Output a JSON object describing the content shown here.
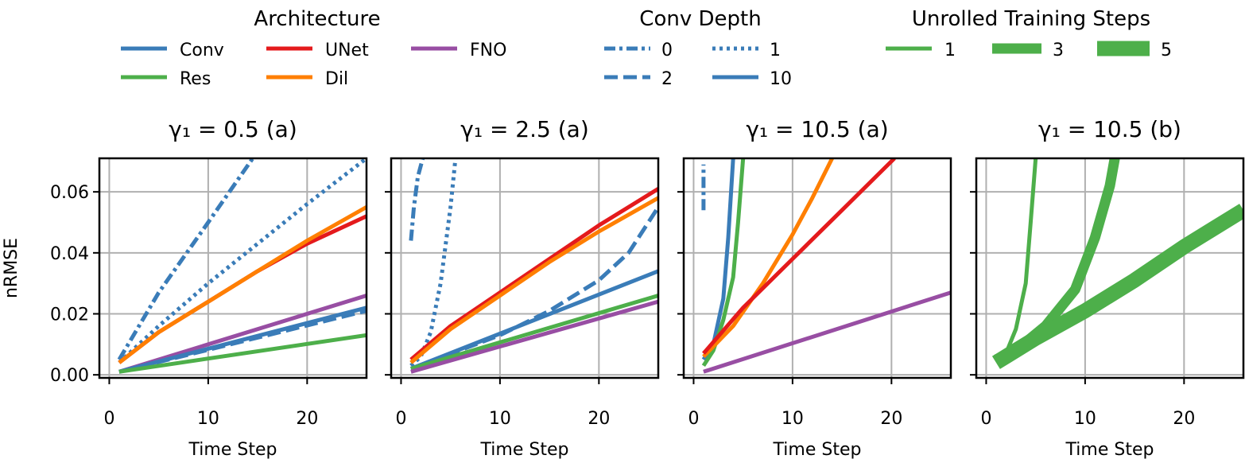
{
  "legend": {
    "architecture": {
      "title": "Architecture",
      "items": [
        {
          "label": "Conv",
          "color": "#3a7cb8"
        },
        {
          "label": "UNet",
          "color": "#e41a1c"
        },
        {
          "label": "FNO",
          "color": "#984ea3"
        },
        {
          "label": "Res",
          "color": "#4daf4a"
        },
        {
          "label": "Dil",
          "color": "#ff7f00"
        }
      ]
    },
    "conv_depth": {
      "title": "Conv Depth",
      "items": [
        {
          "label": "0",
          "style": "dash-dot"
        },
        {
          "label": "1",
          "style": "dotted"
        },
        {
          "label": "2",
          "style": "dashed"
        },
        {
          "label": "10",
          "style": "solid"
        }
      ]
    },
    "unrolled": {
      "title": "Unrolled Training Steps",
      "items": [
        {
          "label": "1",
          "width": "thin"
        },
        {
          "label": "3",
          "width": "medium"
        },
        {
          "label": "5",
          "width": "thick"
        }
      ]
    }
  },
  "chart_data": [
    {
      "type": "line",
      "title": "γ₁ = 0.5 (a)",
      "xlabel": "Time Step",
      "ylabel": "nRMSE",
      "xlim": [
        -1,
        26
      ],
      "ylim": [
        -0.001,
        0.071
      ],
      "xticks": [
        "0",
        "10",
        "20"
      ],
      "yticks": [
        "0.00",
        "0.02",
        "0.04",
        "0.06"
      ],
      "grid": true,
      "series": [
        {
          "arch": "Conv",
          "depth": "0",
          "unroll": "1",
          "color": "#3a7cb8",
          "x": [
            1,
            5,
            10,
            14.5
          ],
          "y": [
            0.005,
            0.027,
            0.05,
            0.071
          ]
        },
        {
          "arch": "Conv",
          "depth": "1",
          "unroll": "1",
          "color": "#3a7cb8",
          "x": [
            1,
            5,
            10,
            15,
            20,
            26
          ],
          "y": [
            0.004,
            0.016,
            0.03,
            0.043,
            0.056,
            0.071
          ]
        },
        {
          "arch": "UNet",
          "depth": "10",
          "unroll": "1",
          "color": "#e41a1c",
          "x": [
            1,
            5,
            10,
            15,
            20,
            26
          ],
          "y": [
            0.004,
            0.014,
            0.024,
            0.034,
            0.043,
            0.052
          ]
        },
        {
          "arch": "Dil",
          "depth": "10",
          "unroll": "1",
          "color": "#ff7f00",
          "x": [
            1,
            5,
            10,
            15,
            20,
            26
          ],
          "y": [
            0.004,
            0.014,
            0.024,
            0.034,
            0.044,
            0.055
          ]
        },
        {
          "arch": "FNO",
          "depth": "10",
          "unroll": "1",
          "color": "#984ea3",
          "x": [
            1,
            26
          ],
          "y": [
            0.001,
            0.026
          ]
        },
        {
          "arch": "Conv",
          "depth": "10",
          "unroll": "1",
          "color": "#3a7cb8",
          "x": [
            1,
            26
          ],
          "y": [
            0.001,
            0.022
          ]
        },
        {
          "arch": "Conv",
          "depth": "2",
          "unroll": "1",
          "color": "#3a7cb8",
          "x": [
            1,
            26
          ],
          "y": [
            0.001,
            0.021
          ]
        },
        {
          "arch": "Res",
          "depth": "10",
          "unroll": "1",
          "color": "#4daf4a",
          "x": [
            1,
            26
          ],
          "y": [
            0.001,
            0.013
          ]
        }
      ]
    },
    {
      "type": "line",
      "title": "γ₁ = 2.5 (a)",
      "xlabel": "Time Step",
      "ylabel": "",
      "xlim": [
        -1,
        26
      ],
      "ylim": [
        -0.001,
        0.071
      ],
      "xticks": [
        "0",
        "10",
        "20"
      ],
      "yticks": [
        "",
        "",
        "",
        ""
      ],
      "grid": true,
      "series": [
        {
          "arch": "Conv",
          "depth": "0",
          "unroll": "1",
          "color": "#3a7cb8",
          "x": [
            1,
            1.3,
            1.7,
            2.2
          ],
          "y": [
            0.044,
            0.055,
            0.065,
            0.071
          ]
        },
        {
          "arch": "Conv",
          "depth": "1",
          "unroll": "1",
          "color": "#3a7cb8",
          "x": [
            1,
            2,
            3,
            4,
            5,
            5.5
          ],
          "y": [
            0.003,
            0.006,
            0.014,
            0.03,
            0.055,
            0.071
          ]
        },
        {
          "arch": "UNet",
          "depth": "10",
          "unroll": "1",
          "color": "#e41a1c",
          "x": [
            1,
            5,
            10,
            15,
            20,
            26
          ],
          "y": [
            0.005,
            0.016,
            0.027,
            0.038,
            0.049,
            0.061
          ]
        },
        {
          "arch": "Dil",
          "depth": "10",
          "unroll": "1",
          "color": "#ff7f00",
          "x": [
            1,
            5,
            10,
            15,
            20,
            26
          ],
          "y": [
            0.004,
            0.015,
            0.026,
            0.037,
            0.047,
            0.058
          ]
        },
        {
          "arch": "Conv",
          "depth": "2",
          "unroll": "1",
          "color": "#3a7cb8",
          "x": [
            1,
            10,
            15,
            20,
            23,
            26
          ],
          "y": [
            0.002,
            0.013,
            0.021,
            0.031,
            0.04,
            0.055
          ]
        },
        {
          "arch": "Conv",
          "depth": "10",
          "unroll": "1",
          "color": "#3a7cb8",
          "x": [
            1,
            26
          ],
          "y": [
            0.002,
            0.034
          ]
        },
        {
          "arch": "Res",
          "depth": "10",
          "unroll": "1",
          "color": "#4daf4a",
          "x": [
            1,
            26
          ],
          "y": [
            0.002,
            0.026
          ]
        },
        {
          "arch": "FNO",
          "depth": "10",
          "unroll": "1",
          "color": "#984ea3",
          "x": [
            1,
            26
          ],
          "y": [
            0.001,
            0.024
          ]
        }
      ]
    },
    {
      "type": "line",
      "title": "γ₁ = 10.5 (a)",
      "xlabel": "Time Step",
      "ylabel": "",
      "xlim": [
        -1,
        26
      ],
      "ylim": [
        -0.001,
        0.071
      ],
      "xticks": [
        "0",
        "10",
        "20"
      ],
      "yticks": [
        "",
        "",
        "",
        ""
      ],
      "grid": true,
      "series": [
        {
          "arch": "Conv",
          "depth": "0",
          "unroll": "1",
          "color": "#3a7cb8",
          "x": [
            1,
            1,
            1
          ],
          "y": [
            0.054,
            0.062,
            0.069
          ]
        },
        {
          "arch": "Conv",
          "depth": "10",
          "unroll": "1",
          "color": "#3a7cb8",
          "x": [
            1,
            2,
            3,
            3.5,
            4
          ],
          "y": [
            0.005,
            0.01,
            0.025,
            0.045,
            0.071
          ]
        },
        {
          "arch": "Res",
          "depth": "10",
          "unroll": "1",
          "color": "#4daf4a",
          "x": [
            1,
            2,
            3,
            4,
            4.5,
            5
          ],
          "y": [
            0.003,
            0.008,
            0.018,
            0.032,
            0.05,
            0.071
          ]
        },
        {
          "arch": "Dil",
          "depth": "10",
          "unroll": "1",
          "color": "#ff7f00",
          "x": [
            1,
            4,
            7,
            10,
            12,
            14
          ],
          "y": [
            0.006,
            0.016,
            0.03,
            0.046,
            0.058,
            0.071
          ]
        },
        {
          "arch": "UNet",
          "depth": "10",
          "unroll": "1",
          "color": "#e41a1c",
          "x": [
            1,
            5,
            10,
            15,
            20.3
          ],
          "y": [
            0.007,
            0.022,
            0.038,
            0.054,
            0.071
          ]
        },
        {
          "arch": "FNO",
          "depth": "10",
          "unroll": "1",
          "color": "#984ea3",
          "x": [
            1,
            26
          ],
          "y": [
            0.001,
            0.027
          ]
        }
      ]
    },
    {
      "type": "line",
      "title": "γ₁ = 10.5 (b)",
      "xlabel": "Time Step",
      "ylabel": "",
      "xlim": [
        -1,
        26
      ],
      "ylim": [
        -0.001,
        0.071
      ],
      "xticks": [
        "0",
        "10",
        "20"
      ],
      "yticks": [
        "",
        "",
        "",
        ""
      ],
      "grid": true,
      "series": [
        {
          "arch": "Res",
          "depth": "10",
          "unroll": "1",
          "color": "#4daf4a",
          "x": [
            1,
            2,
            3,
            4,
            4.5,
            5
          ],
          "y": [
            0.005,
            0.007,
            0.015,
            0.03,
            0.05,
            0.071
          ]
        },
        {
          "arch": "Res",
          "depth": "10",
          "unroll": "3",
          "color": "#4daf4a",
          "x": [
            1,
            3,
            6,
            9,
            11,
            12.5,
            13
          ],
          "y": [
            0.005,
            0.008,
            0.016,
            0.028,
            0.045,
            0.062,
            0.071
          ]
        },
        {
          "arch": "Res",
          "depth": "10",
          "unroll": "5",
          "color": "#4daf4a",
          "x": [
            1,
            5,
            10,
            15,
            20,
            26
          ],
          "y": [
            0.004,
            0.012,
            0.021,
            0.031,
            0.042,
            0.054
          ]
        }
      ]
    }
  ]
}
